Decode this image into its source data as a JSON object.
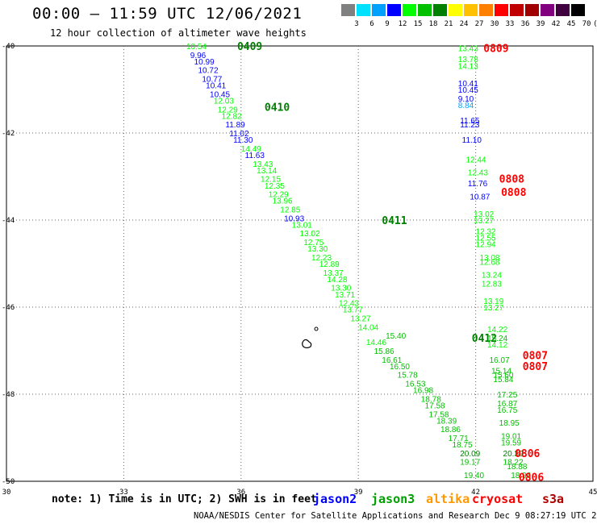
{
  "header": {
    "title": "00:00 – 11:59 UTC 12/06/2021",
    "subtitle": "12 hour collection of altimeter wave heights"
  },
  "legend": {
    "unit": "(ft)",
    "levels": [
      "3",
      "6",
      "9",
      "12",
      "15",
      "18",
      "21",
      "24",
      "27",
      "30",
      "33",
      "36",
      "39",
      "42",
      "45",
      "70"
    ],
    "colors": [
      "#808080",
      "#00e0ff",
      "#00a0ff",
      "#0000ff",
      "#00ff00",
      "#00c000",
      "#008000",
      "#ffff00",
      "#ffc000",
      "#ff8000",
      "#ff0000",
      "#c00000",
      "#a00000",
      "#800080",
      "#400040",
      "#000000"
    ]
  },
  "map": {
    "lon_ticks": [
      "30",
      "33",
      "36",
      "39",
      "42",
      "45"
    ],
    "lat_ticks": [
      "-40",
      "-42",
      "-44",
      "-46",
      "-48",
      "-50"
    ]
  },
  "chart_data": {
    "type": "scatter",
    "title": "00:00 – 11:59 UTC 12/06/2021",
    "subtitle": "12 hour collection of altimeter wave heights",
    "xlim": [
      30,
      45
    ],
    "ylim": [
      -50,
      -40
    ],
    "grid": true,
    "x_ticks": [
      30,
      33,
      36,
      39,
      42,
      45
    ],
    "y_ticks": [
      -40,
      -42,
      -44,
      -46,
      -48,
      -50
    ],
    "tracks": [
      {
        "satellite": "jason3",
        "times": [
          {
            "label": "0409",
            "lon": 35.9,
            "lat": -40.0
          },
          {
            "label": "0410",
            "lon": 36.6,
            "lat": -41.4
          },
          {
            "label": "0411",
            "lon": 39.6,
            "lat": -44.0
          },
          {
            "label": "0412",
            "lon": 41.9,
            "lat": -46.7
          }
        ],
        "points": [
          {
            "v": "10.54",
            "lon": 34.6,
            "lat": -40.0,
            "c": "#00ff00"
          },
          {
            "v": "9.96",
            "lon": 34.7,
            "lat": -40.2,
            "c": "#0000ff"
          },
          {
            "v": "10.99",
            "lon": 34.8,
            "lat": -40.35,
            "c": "#0000ff"
          },
          {
            "v": "10.72",
            "lon": 34.9,
            "lat": -40.55,
            "c": "#0000ff"
          },
          {
            "v": "10.77",
            "lon": 35.0,
            "lat": -40.75,
            "c": "#0000ff"
          },
          {
            "v": "10.41",
            "lon": 35.1,
            "lat": -40.9,
            "c": "#0000ff"
          },
          {
            "v": "10.45",
            "lon": 35.2,
            "lat": -41.1,
            "c": "#0000ff"
          },
          {
            "v": "12.03",
            "lon": 35.3,
            "lat": -41.25,
            "c": "#00ff00"
          },
          {
            "v": "12.29",
            "lon": 35.4,
            "lat": -41.45,
            "c": "#00ff00"
          },
          {
            "v": "12.82",
            "lon": 35.5,
            "lat": -41.6,
            "c": "#00ff00"
          },
          {
            "v": "11.89",
            "lon": 35.6,
            "lat": -41.8,
            "c": "#0000ff"
          },
          {
            "v": "11.02",
            "lon": 35.7,
            "lat": -42.0,
            "c": "#0000ff"
          },
          {
            "v": "11.30",
            "lon": 35.8,
            "lat": -42.15,
            "c": "#0000ff"
          },
          {
            "v": "14.49",
            "lon": 36.0,
            "lat": -42.35,
            "c": "#00ff00"
          },
          {
            "v": "11.63",
            "lon": 36.1,
            "lat": -42.5,
            "c": "#0000ff"
          },
          {
            "v": "13.43",
            "lon": 36.3,
            "lat": -42.7,
            "c": "#00ff00"
          },
          {
            "v": "13.14",
            "lon": 36.4,
            "lat": -42.85,
            "c": "#00ff00"
          },
          {
            "v": "12.15",
            "lon": 36.5,
            "lat": -43.05,
            "c": "#00ff00"
          },
          {
            "v": "12.35",
            "lon": 36.6,
            "lat": -43.2,
            "c": "#00ff00"
          },
          {
            "v": "12.29",
            "lon": 36.7,
            "lat": -43.4,
            "c": "#00ff00"
          },
          {
            "v": "13.96",
            "lon": 36.8,
            "lat": -43.55,
            "c": "#00ff00"
          },
          {
            "v": "12.85",
            "lon": 37.0,
            "lat": -43.75,
            "c": "#00ff00"
          },
          {
            "v": "10.93",
            "lon": 37.1,
            "lat": -43.95,
            "c": "#0000ff"
          },
          {
            "v": "13.01",
            "lon": 37.3,
            "lat": -44.1,
            "c": "#00ff00"
          },
          {
            "v": "13.02",
            "lon": 37.5,
            "lat": -44.3,
            "c": "#00ff00"
          },
          {
            "v": "12.75",
            "lon": 37.6,
            "lat": -44.5,
            "c": "#00ff00"
          },
          {
            "v": "13.30",
            "lon": 37.7,
            "lat": -44.65,
            "c": "#00ff00"
          },
          {
            "v": "12.23",
            "lon": 37.8,
            "lat": -44.85,
            "c": "#00ff00"
          },
          {
            "v": "12.89",
            "lon": 38.0,
            "lat": -45.0,
            "c": "#00ff00"
          },
          {
            "v": "13.37",
            "lon": 38.1,
            "lat": -45.2,
            "c": "#00ff00"
          },
          {
            "v": "14.28",
            "lon": 38.2,
            "lat": -45.35,
            "c": "#00ff00"
          },
          {
            "v": "13.30",
            "lon": 38.3,
            "lat": -45.55,
            "c": "#00ff00"
          },
          {
            "v": "13.71",
            "lon": 38.4,
            "lat": -45.7,
            "c": "#00ff00"
          },
          {
            "v": "12.43",
            "lon": 38.5,
            "lat": -45.9,
            "c": "#00ff00"
          },
          {
            "v": "13.77",
            "lon": 38.6,
            "lat": -46.05,
            "c": "#00ff00"
          },
          {
            "v": "13.27",
            "lon": 38.8,
            "lat": -46.25,
            "c": "#00ff00"
          },
          {
            "v": "14.04",
            "lon": 39.0,
            "lat": -46.45,
            "c": "#00ff00"
          },
          {
            "v": "15.40",
            "lon": 39.7,
            "lat": -46.65,
            "c": "#00c000"
          },
          {
            "v": "14.46",
            "lon": 39.2,
            "lat": -46.8,
            "c": "#00ff00"
          },
          {
            "v": "15.86",
            "lon": 39.4,
            "lat": -47.0,
            "c": "#00c000"
          },
          {
            "v": "16.61",
            "lon": 39.6,
            "lat": -47.2,
            "c": "#00c000"
          },
          {
            "v": "16.50",
            "lon": 39.8,
            "lat": -47.35,
            "c": "#00c000"
          },
          {
            "v": "15.78",
            "lon": 40.0,
            "lat": -47.55,
            "c": "#00c000"
          },
          {
            "v": "16.53",
            "lon": 40.2,
            "lat": -47.75,
            "c": "#00c000"
          },
          {
            "v": "16.98",
            "lon": 40.4,
            "lat": -47.9,
            "c": "#00c000"
          },
          {
            "v": "18.78",
            "lon": 40.6,
            "lat": -48.1,
            "c": "#00c000"
          },
          {
            "v": "17.58",
            "lon": 40.7,
            "lat": -48.25,
            "c": "#00c000"
          },
          {
            "v": "17.58",
            "lon": 40.8,
            "lat": -48.45,
            "c": "#00c000"
          },
          {
            "v": "18.39",
            "lon": 41.0,
            "lat": -48.6,
            "c": "#00c000"
          },
          {
            "v": "18.86",
            "lon": 41.1,
            "lat": -48.8,
            "c": "#00c000"
          },
          {
            "v": "17.71",
            "lon": 41.3,
            "lat": -49.0,
            "c": "#00c000"
          },
          {
            "v": "18.75",
            "lon": 41.4,
            "lat": -49.15,
            "c": "#00c000"
          },
          {
            "v": "20.09",
            "lon": 41.6,
            "lat": -49.35,
            "c": "#008000"
          },
          {
            "v": "19.17",
            "lon": 41.6,
            "lat": -49.55,
            "c": "#00c000"
          },
          {
            "v": "19.40",
            "lon": 41.7,
            "lat": -49.85,
            "c": "#00c000"
          }
        ]
      },
      {
        "satellite": "s3a / cryosat",
        "times": [
          {
            "label": "0809",
            "lon": 42.2,
            "lat": -40.05
          },
          {
            "label": "0808",
            "lon": 42.6,
            "lat": -43.05
          },
          {
            "label": "0808",
            "lon": 42.65,
            "lat": -43.35
          },
          {
            "label": "0807",
            "lon": 43.2,
            "lat": -47.1
          },
          {
            "label": "0807",
            "lon": 43.2,
            "lat": -47.35
          },
          {
            "label": "0806",
            "lon": 43.0,
            "lat": -49.35
          },
          {
            "label": "0806",
            "lon": 43.1,
            "lat": -49.9
          }
        ],
        "points": [
          {
            "v": "13.43",
            "lon": 41.55,
            "lat": -40.05,
            "c": "#00ff00"
          },
          {
            "v": "13.78",
            "lon": 41.55,
            "lat": -40.3,
            "c": "#00ff00"
          },
          {
            "v": "14.13",
            "lon": 41.55,
            "lat": -40.45,
            "c": "#00ff00"
          },
          {
            "v": "10.41",
            "lon": 41.55,
            "lat": -40.85,
            "c": "#0000ff"
          },
          {
            "v": "10.45",
            "lon": 41.55,
            "lat": -41.0,
            "c": "#0000ff"
          },
          {
            "v": "9.10",
            "lon": 41.55,
            "lat": -41.2,
            "c": "#0000ff"
          },
          {
            "v": "8.84",
            "lon": 41.55,
            "lat": -41.35,
            "c": "#00a0ff"
          },
          {
            "v": "11.65",
            "lon": 41.6,
            "lat": -41.7,
            "c": "#0000ff"
          },
          {
            "v": "11.23",
            "lon": 41.6,
            "lat": -41.8,
            "c": "#0000ff"
          },
          {
            "v": "11.10",
            "lon": 41.65,
            "lat": -42.15,
            "c": "#0000ff"
          },
          {
            "v": "12.44",
            "lon": 41.75,
            "lat": -42.6,
            "c": "#00ff00"
          },
          {
            "v": "12.43",
            "lon": 41.8,
            "lat": -42.9,
            "c": "#00ff00"
          },
          {
            "v": "11.76",
            "lon": 41.8,
            "lat": -43.15,
            "c": "#0000ff"
          },
          {
            "v": "10.87",
            "lon": 41.85,
            "lat": -43.45,
            "c": "#0000ff"
          },
          {
            "v": "13.02",
            "lon": 41.95,
            "lat": -43.85,
            "c": "#00ff00"
          },
          {
            "v": "13.27",
            "lon": 41.95,
            "lat": -44.0,
            "c": "#00ff00"
          },
          {
            "v": "12.32",
            "lon": 42.0,
            "lat": -44.25,
            "c": "#00ff00"
          },
          {
            "v": "12.55",
            "lon": 42.0,
            "lat": -44.4,
            "c": "#00ff00"
          },
          {
            "v": "12.94",
            "lon": 42.0,
            "lat": -44.55,
            "c": "#00ff00"
          },
          {
            "v": "13.08",
            "lon": 42.1,
            "lat": -44.85,
            "c": "#00ff00"
          },
          {
            "v": "12.68",
            "lon": 42.1,
            "lat": -44.95,
            "c": "#00ff00"
          },
          {
            "v": "13.24",
            "lon": 42.15,
            "lat": -45.25,
            "c": "#00ff00"
          },
          {
            "v": "12.83",
            "lon": 42.15,
            "lat": -45.45,
            "c": "#00ff00"
          },
          {
            "v": "13.19",
            "lon": 42.2,
            "lat": -45.85,
            "c": "#00ff00"
          },
          {
            "v": "13.27",
            "lon": 42.2,
            "lat": -46.0,
            "c": "#00ff00"
          },
          {
            "v": "14.22",
            "lon": 42.3,
            "lat": -46.5,
            "c": "#00ff00"
          },
          {
            "v": "15.24",
            "lon": 42.3,
            "lat": -46.7,
            "c": "#00c000"
          },
          {
            "v": "14.12",
            "lon": 42.3,
            "lat": -46.85,
            "c": "#00ff00"
          },
          {
            "v": "16.07",
            "lon": 42.35,
            "lat": -47.2,
            "c": "#00c000"
          },
          {
            "v": "15.14",
            "lon": 42.4,
            "lat": -47.45,
            "c": "#00c000"
          },
          {
            "v": "15.60",
            "lon": 42.45,
            "lat": -47.55,
            "c": "#00c000"
          },
          {
            "v": "15.84",
            "lon": 42.45,
            "lat": -47.65,
            "c": "#00c000"
          },
          {
            "v": "17.25",
            "lon": 42.55,
            "lat": -48.0,
            "c": "#00c000"
          },
          {
            "v": "16.87",
            "lon": 42.55,
            "lat": -48.2,
            "c": "#00c000"
          },
          {
            "v": "16.75",
            "lon": 42.55,
            "lat": -48.35,
            "c": "#00c000"
          },
          {
            "v": "18.95",
            "lon": 42.6,
            "lat": -48.65,
            "c": "#00c000"
          },
          {
            "v": "19.01",
            "lon": 42.65,
            "lat": -48.95,
            "c": "#00c000"
          },
          {
            "v": "19.59",
            "lon": 42.65,
            "lat": -49.1,
            "c": "#00c000"
          },
          {
            "v": "20.39",
            "lon": 42.7,
            "lat": -49.35,
            "c": "#008000"
          },
          {
            "v": "18.22",
            "lon": 42.7,
            "lat": -49.55,
            "c": "#00c000"
          },
          {
            "v": "18.88",
            "lon": 42.8,
            "lat": -49.65,
            "c": "#00c000"
          },
          {
            "v": "18.96",
            "lon": 42.9,
            "lat": -49.85,
            "c": "#00c000"
          }
        ]
      }
    ]
  },
  "footer": {
    "note": "note: 1) Time is in UTC; 2) SWH is in feet",
    "satellites": [
      {
        "name": "jason2",
        "color": "#0000ff"
      },
      {
        "name": "jason3",
        "color": "#00a000"
      },
      {
        "name": "altika",
        "color": "#ff9900"
      },
      {
        "name": "cryosat",
        "color": "#ff0000"
      },
      {
        "name": "s3a",
        "color": "#b00000"
      }
    ],
    "credit": "NOAA/NESDIS Center for Satellite Applications and Research   Dec  9 08:27:19 UTC 2021"
  }
}
